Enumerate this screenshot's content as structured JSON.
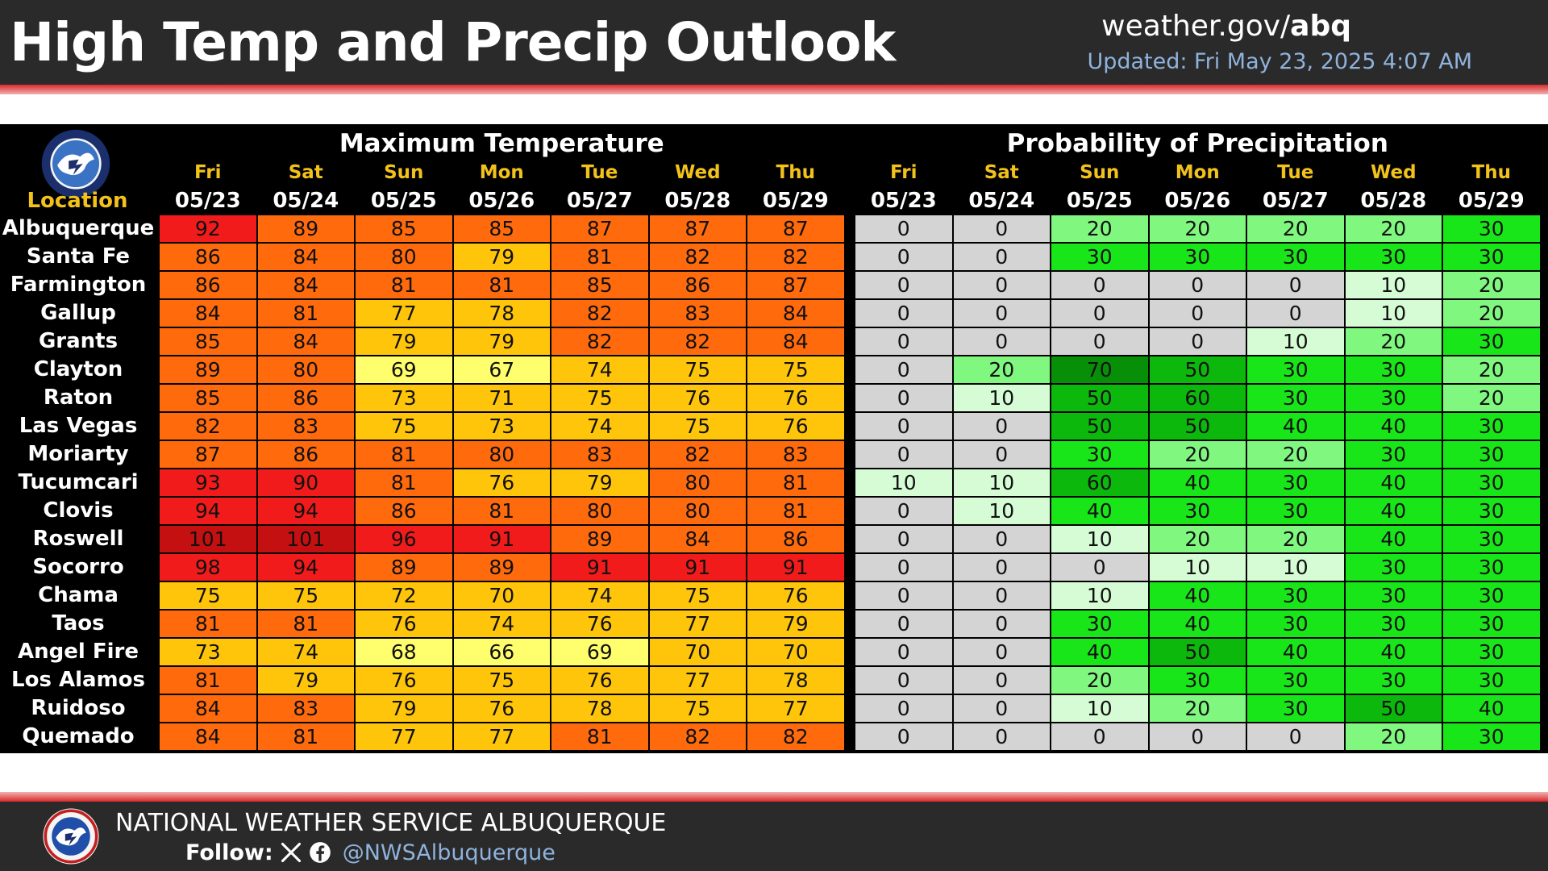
{
  "header": {
    "title": "High Temp and Precip Outlook",
    "url_prefix": "weather.gov/",
    "url_suffix": "abq",
    "updated": "Updated: Fri May 23, 2025 4:07 AM"
  },
  "table": {
    "location_header": "Location",
    "temp_title": "Maximum Temperature",
    "pop_title": "Probability of Precipitation",
    "days": [
      "Fri",
      "Sat",
      "Sun",
      "Mon",
      "Tue",
      "Wed",
      "Thu"
    ],
    "dates": [
      "05/23",
      "05/24",
      "05/25",
      "05/26",
      "05/27",
      "05/28",
      "05/29"
    ],
    "locations": [
      {
        "name": "Albuquerque",
        "temp": [
          92,
          89,
          85,
          85,
          87,
          87,
          87
        ],
        "pop": [
          0,
          0,
          20,
          20,
          20,
          20,
          30
        ]
      },
      {
        "name": "Santa Fe",
        "temp": [
          86,
          84,
          80,
          79,
          81,
          82,
          82
        ],
        "pop": [
          0,
          0,
          30,
          30,
          30,
          30,
          30
        ]
      },
      {
        "name": "Farmington",
        "temp": [
          86,
          84,
          81,
          81,
          85,
          86,
          87
        ],
        "pop": [
          0,
          0,
          0,
          0,
          0,
          10,
          20
        ]
      },
      {
        "name": "Gallup",
        "temp": [
          84,
          81,
          77,
          78,
          82,
          83,
          84
        ],
        "pop": [
          0,
          0,
          0,
          0,
          0,
          10,
          20
        ]
      },
      {
        "name": "Grants",
        "temp": [
          85,
          84,
          79,
          79,
          82,
          82,
          84
        ],
        "pop": [
          0,
          0,
          0,
          0,
          10,
          20,
          30
        ]
      },
      {
        "name": "Clayton",
        "temp": [
          89,
          80,
          69,
          67,
          74,
          75,
          75
        ],
        "pop": [
          0,
          20,
          70,
          50,
          30,
          30,
          20
        ]
      },
      {
        "name": "Raton",
        "temp": [
          85,
          86,
          73,
          71,
          75,
          76,
          76
        ],
        "pop": [
          0,
          10,
          50,
          60,
          30,
          30,
          20
        ]
      },
      {
        "name": "Las Vegas",
        "temp": [
          82,
          83,
          75,
          73,
          74,
          75,
          76
        ],
        "pop": [
          0,
          0,
          50,
          50,
          40,
          40,
          30
        ]
      },
      {
        "name": "Moriarty",
        "temp": [
          87,
          86,
          81,
          80,
          83,
          82,
          83
        ],
        "pop": [
          0,
          0,
          30,
          20,
          20,
          30,
          30
        ]
      },
      {
        "name": "Tucumcari",
        "temp": [
          93,
          90,
          81,
          76,
          79,
          80,
          81
        ],
        "pop": [
          10,
          10,
          60,
          40,
          30,
          40,
          30
        ]
      },
      {
        "name": "Clovis",
        "temp": [
          94,
          94,
          86,
          81,
          80,
          80,
          81
        ],
        "pop": [
          0,
          10,
          40,
          30,
          30,
          40,
          30
        ]
      },
      {
        "name": "Roswell",
        "temp": [
          101,
          101,
          96,
          91,
          89,
          84,
          86
        ],
        "pop": [
          0,
          0,
          10,
          20,
          20,
          40,
          30
        ]
      },
      {
        "name": "Socorro",
        "temp": [
          98,
          94,
          89,
          89,
          91,
          91,
          91
        ],
        "pop": [
          0,
          0,
          0,
          10,
          10,
          30,
          30
        ]
      },
      {
        "name": "Chama",
        "temp": [
          75,
          75,
          72,
          70,
          74,
          75,
          76
        ],
        "pop": [
          0,
          0,
          10,
          40,
          30,
          30,
          30
        ]
      },
      {
        "name": "Taos",
        "temp": [
          81,
          81,
          76,
          74,
          76,
          77,
          79
        ],
        "pop": [
          0,
          0,
          30,
          40,
          30,
          30,
          30
        ]
      },
      {
        "name": "Angel Fire",
        "temp": [
          73,
          74,
          68,
          66,
          69,
          70,
          70
        ],
        "pop": [
          0,
          0,
          40,
          50,
          40,
          40,
          30
        ]
      },
      {
        "name": "Los Alamos",
        "temp": [
          81,
          79,
          76,
          75,
          76,
          77,
          78
        ],
        "pop": [
          0,
          0,
          20,
          30,
          30,
          30,
          30
        ]
      },
      {
        "name": "Ruidoso",
        "temp": [
          84,
          83,
          79,
          76,
          78,
          75,
          77
        ],
        "pop": [
          0,
          0,
          10,
          20,
          30,
          50,
          40
        ]
      },
      {
        "name": "Quemado",
        "temp": [
          84,
          81,
          77,
          77,
          81,
          82,
          82
        ],
        "pop": [
          0,
          0,
          0,
          0,
          0,
          20,
          30
        ]
      }
    ]
  },
  "colors": {
    "temp_100_plus": "#c41010",
    "temp_90s": "#f21b1b",
    "temp_80s": "#ff6a0d",
    "temp_70s": "#ffc50a",
    "temp_60s": "#ffff6e",
    "pop_0": "#d4d4d4",
    "pop_10": "#d6fcd6",
    "pop_20": "#80f880",
    "pop_30_40": "#19e619",
    "pop_50_60": "#0bb80b",
    "pop_70": "#079007"
  },
  "footer": {
    "org": "NATIONAL WEATHER SERVICE ALBUQUERQUE",
    "follow_label": "Follow:",
    "handle": "@NWSAlbuquerque",
    "social_icons": [
      "x-icon",
      "facebook-icon"
    ]
  }
}
